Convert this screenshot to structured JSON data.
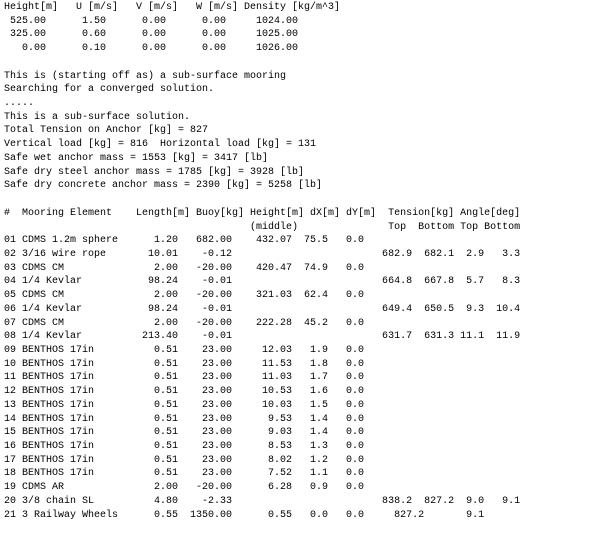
{
  "lines": [
    "Height[m]   U [m/s]   V [m/s]   W [m/s] Density [kg/m^3]",
    " 525.00      1.50      0.00      0.00     1024.00",
    " 325.00      0.60      0.00      0.00     1025.00",
    "   0.00      0.10      0.00      0.00     1026.00",
    "",
    "This is (starting off as) a sub-surface mooring",
    "Searching for a converged solution.",
    ".....",
    "This is a sub-surface solution.",
    "Total Tension on Anchor [kg] = 827",
    "Vertical load [kg] = 816  Horizontal load [kg] = 131",
    "Safe wet anchor mass = 1553 [kg] = 3417 [lb]",
    "Safe dry steel anchor mass = 1785 [kg] = 3928 [lb]",
    "Safe dry concrete anchor mass = 2390 [kg] = 5258 [lb]",
    "",
    "#  Mooring Element    Length[m] Buoy[kg] Height[m] dX[m] dY[m]  Tension[kg] Angle[deg]",
    "                                         (middle)               Top  Bottom Top Bottom",
    "01 CDMS 1.2m sphere      1.20   682.00    432.07  75.5   0.0",
    "02 3/16 wire rope       10.01    -0.12                         682.9  682.1  2.9   3.3",
    "03 CDMS CM               2.00   -20.00    420.47  74.9   0.0",
    "04 1/4 Kevlar           98.24    -0.01                         664.8  667.8  5.7   8.3",
    "05 CDMS CM               2.00   -20.00    321.03  62.4   0.0",
    "06 1/4 Kevlar           98.24    -0.01                         649.4  650.5  9.3  10.4",
    "07 CDMS CM               2.00   -20.00    222.28  45.2   0.0",
    "08 1/4 Kevlar          213.40    -0.01                         631.7  631.3 11.1  11.9",
    "09 BENTHOS 17in          0.51    23.00     12.03   1.9   0.0",
    "10 BENTHOS 17in          0.51    23.00     11.53   1.8   0.0",
    "11 BENTHOS 17in          0.51    23.00     11.03   1.7   0.0",
    "12 BENTHOS 17in          0.51    23.00     10.53   1.6   0.0",
    "13 BENTHOS 17in          0.51    23.00     10.03   1.5   0.0",
    "14 BENTHOS 17in          0.51    23.00      9.53   1.4   0.0",
    "15 BENTHOS 17in          0.51    23.00      9.03   1.4   0.0",
    "16 BENTHOS 17in          0.51    23.00      8.53   1.3   0.0",
    "17 BENTHOS 17in          0.51    23.00      8.02   1.2   0.0",
    "18 BENTHOS 17in          0.51    23.00      7.52   1.1   0.0",
    "19 CDMS AR               2.00   -20.00      6.28   0.9   0.0",
    "20 3/8 chain SL          4.80    -2.33                         838.2  827.2  9.0   9.1",
    "21 3 Railway Wheels      0.55  1350.00      0.55   0.0   0.0     827.2       9.1"
  ]
}
